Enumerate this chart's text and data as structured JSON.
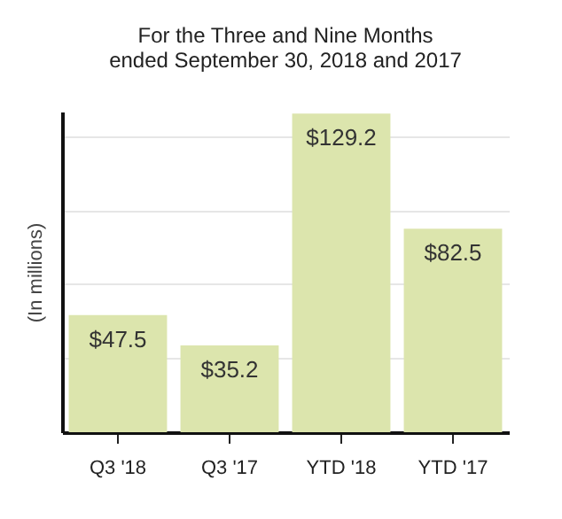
{
  "chart_data": {
    "type": "bar",
    "title": "For the Three and Nine Months ended September 30, 2018 and 2017",
    "ylabel": "(In millions)",
    "categories": [
      "Q3 '18",
      "Q3 '17",
      "YTD '18",
      "YTD '17"
    ],
    "values": [
      47.5,
      35.2,
      129.2,
      82.5
    ],
    "value_labels": [
      "$47.5",
      "$35.2",
      "$129.2",
      "$82.5"
    ],
    "color": "#dce5ad",
    "ylim": [
      0,
      130
    ],
    "yticks": [
      {
        "value": 30,
        "label": null
      },
      {
        "value": 60,
        "label": null
      },
      {
        "value": 90,
        "label": null
      },
      {
        "value": 120,
        "label": null
      }
    ],
    "grid": "y",
    "tick_labels": "x"
  }
}
